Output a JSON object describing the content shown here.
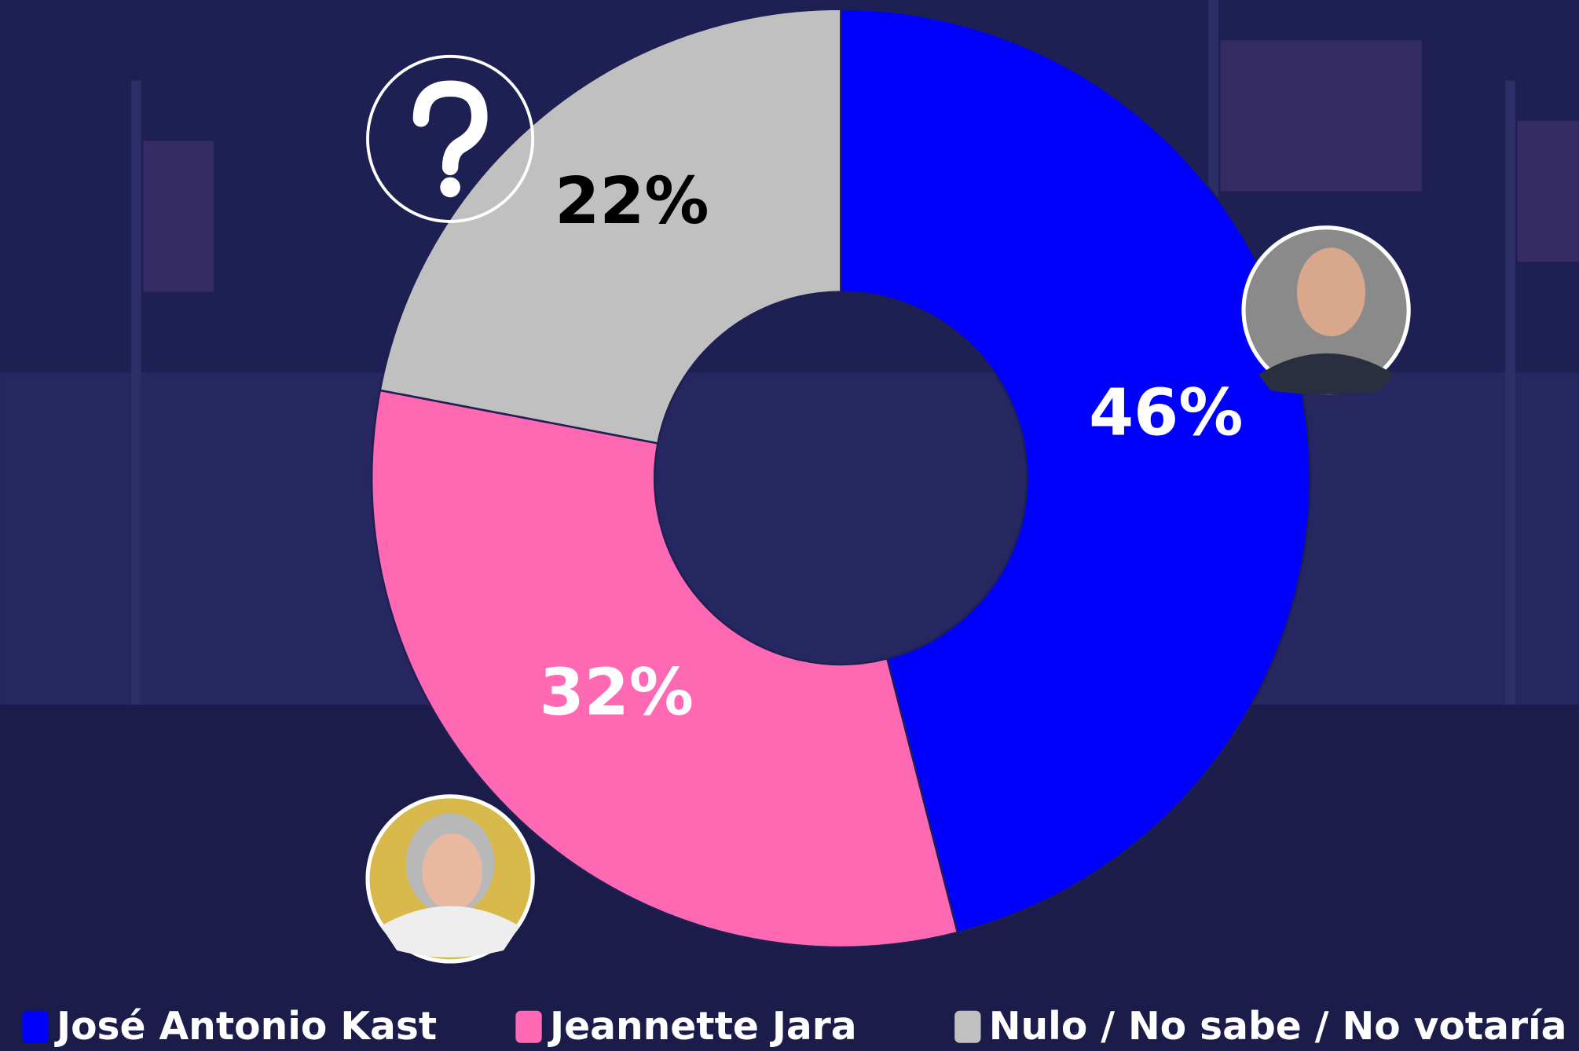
{
  "chart_data": {
    "type": "pie",
    "categories": [
      "José Antonio Kast",
      "Jeannette Jara",
      "Nulo / No sabe / No votaría"
    ],
    "values": [
      46,
      32,
      22
    ],
    "value_labels": [
      "46%",
      "32%",
      "22%"
    ],
    "colors": [
      "#0000ff",
      "#ff69b4",
      "#c0c0c0"
    ]
  }
}
